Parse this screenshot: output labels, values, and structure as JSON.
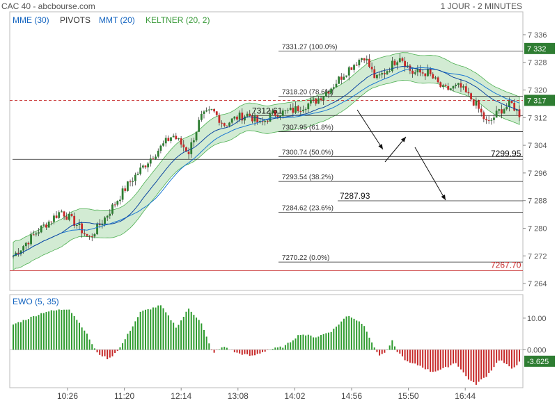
{
  "header": {
    "title": "CAC 40 - abcbourse.com",
    "period": "1 JOUR - 2 MINUTES"
  },
  "indicators": [
    {
      "label": "MME (30)",
      "color": "#1565c0"
    },
    {
      "label": "PIVOTS",
      "color": "#333333"
    },
    {
      "label": "MMT (20)",
      "color": "#1565c0"
    },
    {
      "label": "KELTNER (20, 2)",
      "color": "#3a9a3a"
    }
  ],
  "chart_data": [
    {
      "type": "candlestick",
      "title": "CAC 40",
      "xlabel": "",
      "ylabel": "",
      "x_ticks": [
        "10:26",
        "11:20",
        "12:14",
        "13:08",
        "14:02",
        "14:56",
        "15:50",
        "16:44"
      ],
      "y_ticks": [
        7264,
        7272,
        7280,
        7288,
        7296,
        7304,
        7312,
        7320,
        7328,
        7336
      ],
      "ylim": [
        7262,
        7338
      ],
      "last_price": "7 332",
      "last_price_value": 7332,
      "current_price": "7 317",
      "current_price_value": 7317,
      "fibonacci": [
        {
          "value": 7331.27,
          "label": "7331.27  (100.0%)"
        },
        {
          "value": 7318.2,
          "label": "7318.20  (78.6%)"
        },
        {
          "value": 7307.95,
          "label": "7307.95  (61.8%)"
        },
        {
          "value": 7300.74,
          "label": "7300.74  (50.0%)"
        },
        {
          "value": 7293.54,
          "label": "7293.54  (38.2%)"
        },
        {
          "value": 7284.62,
          "label": "7284.62  (23.6%)"
        },
        {
          "value": 7270.22,
          "label": "7270.22  (0.0%)"
        }
      ],
      "annotations": [
        {
          "text": "7312.61",
          "value": 7312.61
        },
        {
          "text": "7299.95",
          "value": 7299.95
        },
        {
          "text": "7287.93",
          "value": 7287.93
        },
        {
          "text": "7267.70",
          "value": 7267.7
        }
      ],
      "price_path": [
        [
          0,
          7272
        ],
        [
          6,
          7279
        ],
        [
          12,
          7285
        ],
        [
          16,
          7281
        ],
        [
          19,
          7277
        ],
        [
          23,
          7283
        ],
        [
          29,
          7293
        ],
        [
          35,
          7301
        ],
        [
          40,
          7307
        ],
        [
          44,
          7302
        ],
        [
          47,
          7312
        ],
        [
          50,
          7314
        ],
        [
          53,
          7310
        ],
        [
          56,
          7312
        ],
        [
          59,
          7313
        ],
        [
          62,
          7310
        ],
        [
          65,
          7313
        ],
        [
          70,
          7314
        ],
        [
          76,
          7317
        ],
        [
          80,
          7321
        ],
        [
          84,
          7326
        ],
        [
          88,
          7330
        ],
        [
          91,
          7323
        ],
        [
          94,
          7326
        ],
        [
          97,
          7330
        ],
        [
          100,
          7325
        ],
        [
          104,
          7325
        ],
        [
          108,
          7320
        ],
        [
          112,
          7321
        ],
        [
          116,
          7316
        ],
        [
          119,
          7310
        ],
        [
          122,
          7314
        ],
        [
          125,
          7316
        ],
        [
          127,
          7313
        ]
      ],
      "candle_count": 200
    },
    {
      "type": "bar",
      "title": "EWO (5, 35)",
      "y_ticks": [
        10.0,
        0.0
      ],
      "ylim": [
        -12,
        17
      ],
      "last_value": "-3.625",
      "ewo_path": [
        [
          0,
          8
        ],
        [
          8,
          12
        ],
        [
          14,
          13
        ],
        [
          18,
          6
        ],
        [
          21,
          -1
        ],
        [
          24,
          -3
        ],
        [
          27,
          1
        ],
        [
          32,
          12
        ],
        [
          37,
          14
        ],
        [
          41,
          7
        ],
        [
          44,
          13
        ],
        [
          47,
          9
        ],
        [
          50,
          -1
        ],
        [
          53,
          1
        ],
        [
          56,
          -1
        ],
        [
          60,
          -2
        ],
        [
          64,
          0
        ],
        [
          68,
          1
        ],
        [
          72,
          5
        ],
        [
          76,
          4
        ],
        [
          80,
          6
        ],
        [
          84,
          11
        ],
        [
          88,
          8
        ],
        [
          90,
          2
        ],
        [
          92,
          -2
        ],
        [
          94,
          0
        ],
        [
          95,
          3
        ],
        [
          96,
          0
        ],
        [
          99,
          -4
        ],
        [
          102,
          -5
        ],
        [
          105,
          -7
        ],
        [
          108,
          -6
        ],
        [
          111,
          -4
        ],
        [
          114,
          -9
        ],
        [
          116,
          -11
        ],
        [
          119,
          -8
        ],
        [
          122,
          -3
        ],
        [
          125,
          -6
        ],
        [
          127,
          -4
        ]
      ]
    }
  ]
}
